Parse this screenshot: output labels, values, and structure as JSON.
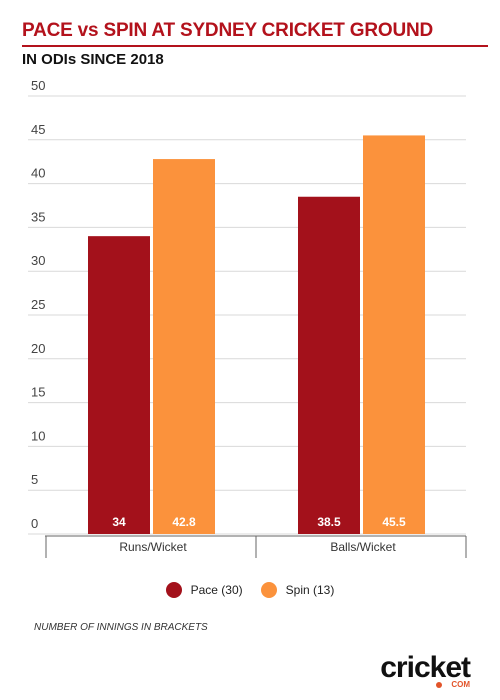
{
  "header": {
    "title": "PACE vs SPIN AT SYDNEY CRICKET GROUND",
    "subtitle": "IN ODIs SINCE 2018"
  },
  "chart_data": {
    "type": "bar",
    "title": "PACE vs SPIN AT SYDNEY CRICKET GROUND",
    "subtitle": "IN ODIs SINCE 2018",
    "categories": [
      "Runs/Wicket",
      "Balls/Wicket"
    ],
    "series": [
      {
        "name": "Pace (30)",
        "values": [
          34,
          38.5
        ],
        "labels": [
          "34",
          "38.5"
        ],
        "color": "#a3111b"
      },
      {
        "name": "Spin (13)",
        "values": [
          42.8,
          45.5
        ],
        "labels": [
          "42.8",
          "45.5"
        ],
        "color": "#fb923c"
      }
    ],
    "yticks": [
      "0",
      "5",
      "10",
      "15",
      "20",
      "25",
      "30",
      "35",
      "40",
      "45",
      "50"
    ],
    "ylim": [
      0,
      50
    ],
    "grid": true,
    "legend": "bottom"
  },
  "legend": [
    "Pace (30)",
    "Spin (13)"
  ],
  "footnote": "NUMBER OF INNINGS IN BRACKETS",
  "logo": {
    "text": "cricket",
    "sub": "COM"
  }
}
